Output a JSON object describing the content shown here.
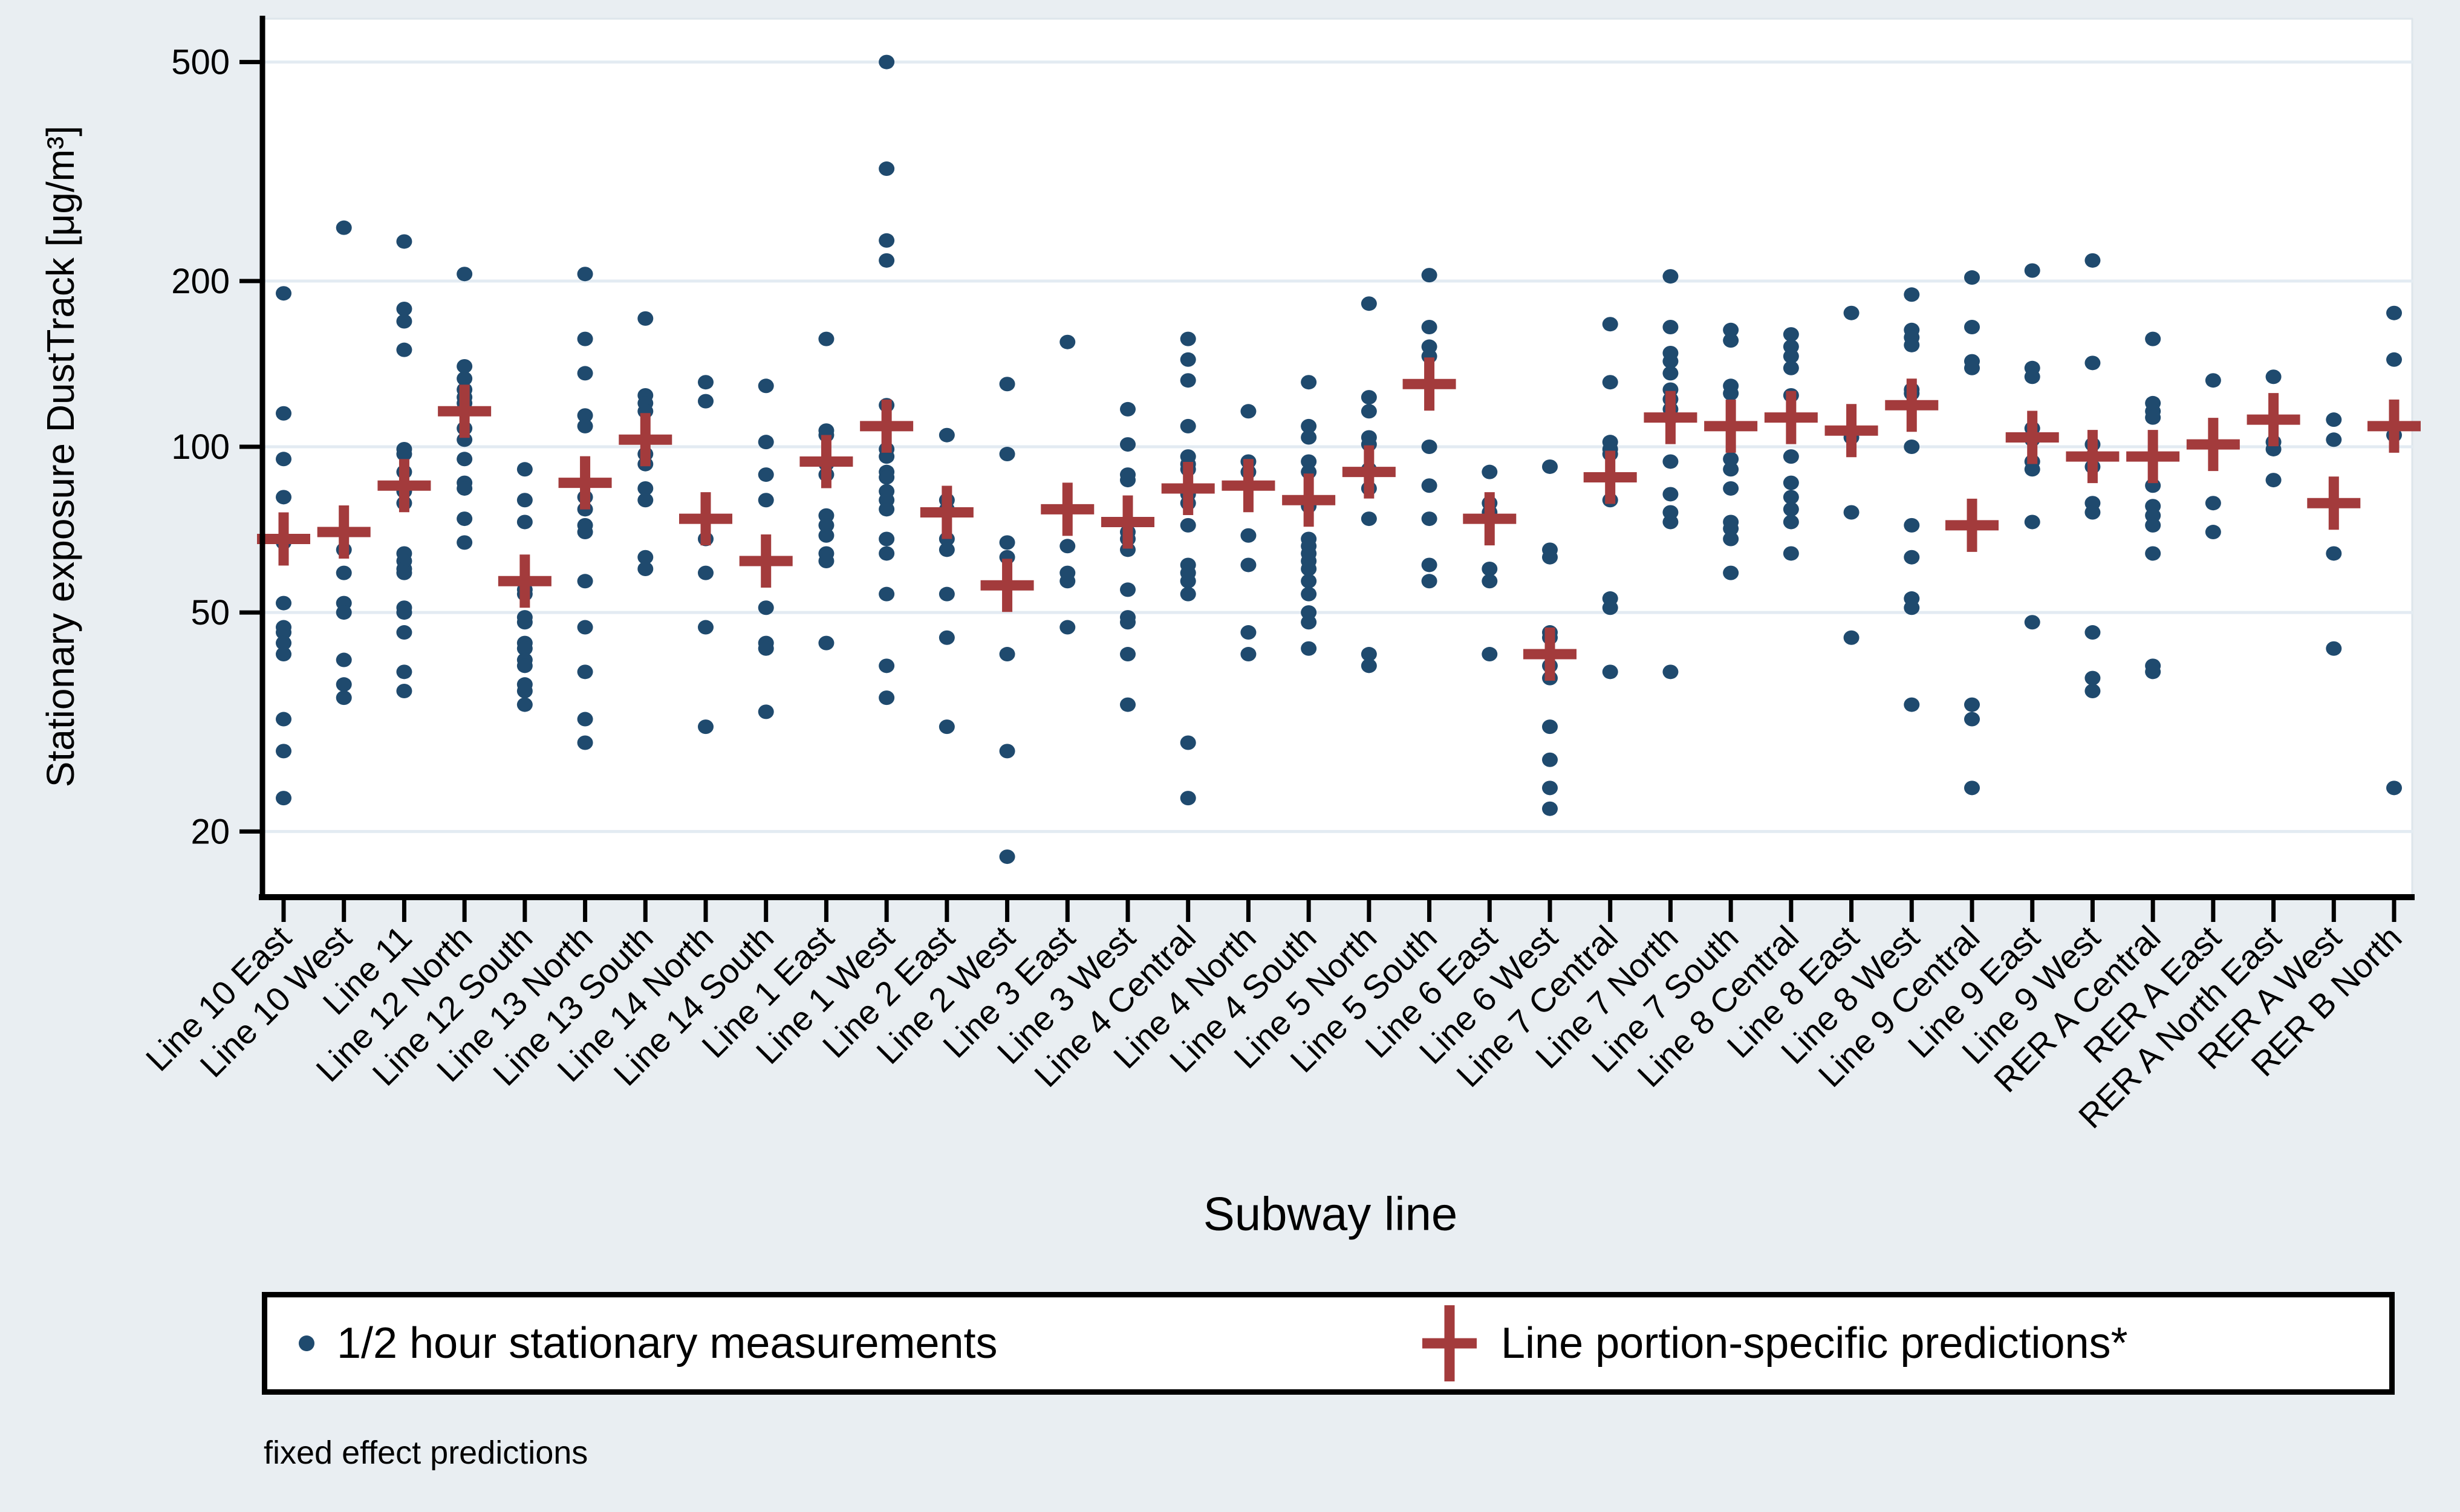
{
  "figure": {
    "footnote": "fixed effect predictions",
    "colors": {
      "dot": "#1f4a6e",
      "plus": "#a33b3c",
      "grid": "#e3ebf2",
      "figure_bg": "#e9eef2",
      "plot_bg": "#ffffff",
      "axis": "#000000",
      "plot_edge": "#dde5eb"
    }
  },
  "chart_data": {
    "type": "scatter",
    "title": "",
    "xlabel": "Subway line",
    "ylabel": "Stationary exposure DustTrack [μg/m³]",
    "y_scale": "log",
    "y_ticks": [
      20,
      50,
      100,
      200,
      500
    ],
    "ylim": [
      15,
      600
    ],
    "grid": "horizontal gridlines at y ticks",
    "legend_position": "bottom",
    "series": [
      {
        "name": "1/2 hour stationary measurements",
        "marker": "dot",
        "color": "#1f4a6e"
      },
      {
        "name": "Line portion-specific predictions*",
        "marker": "plus",
        "color": "#a33b3c"
      }
    ],
    "categories": [
      "Line 10 East",
      "Line 10 West",
      "Line 11",
      "Line 12 North",
      "Line 12 South",
      "Line 13 North",
      "Line 13 South",
      "Line 14 North",
      "Line 14 South",
      "Line 1 East",
      "Line 1 West",
      "Line 2 East",
      "Line 2 West",
      "Line 3 East",
      "Line 3 West",
      "Line 4 Central",
      "Line 4 North",
      "Line 4 South",
      "Line 5 North",
      "Line 5 South",
      "Line 6 East",
      "Line 6 West",
      "Line 7 Central",
      "Line 7 North",
      "Line 7 South",
      "Line 8 Central",
      "Line 8 East",
      "Line 8 West",
      "Line 9 Central",
      "Line 9 East",
      "Line 9 West",
      "RER A Central",
      "RER A East",
      "RER A North East",
      "RER A West",
      "RER B North"
    ],
    "measurements": [
      [
        190,
        115,
        95,
        81,
        67,
        52,
        47,
        46,
        44,
        42,
        32,
        28,
        23
      ],
      [
        250,
        65,
        59,
        52,
        50,
        41,
        37,
        35
      ],
      [
        236,
        178,
        169,
        150,
        99,
        97,
        90,
        83,
        79,
        64,
        62,
        60,
        59,
        51,
        50,
        46,
        39,
        36
      ],
      [
        206,
        140,
        133,
        127,
        123,
        120,
        108,
        103,
        95,
        86,
        84,
        74,
        67
      ],
      [
        91,
        80,
        73,
        55,
        54,
        49,
        48,
        44,
        43,
        41,
        40,
        37,
        36,
        34
      ],
      [
        206,
        157,
        136,
        114,
        109,
        81,
        77,
        72,
        70,
        57,
        47,
        39,
        32,
        29
      ],
      [
        171,
        124,
        120,
        116,
        97,
        93,
        84,
        80,
        63,
        60
      ],
      [
        131,
        121,
        68,
        59,
        47,
        31
      ],
      [
        129,
        102,
        89,
        80,
        51,
        44,
        43,
        33
      ],
      [
        157,
        107,
        105,
        93,
        89,
        75,
        72,
        69,
        64,
        62,
        44
      ],
      [
        500,
        320,
        237,
        218,
        119,
        99,
        96,
        90,
        88,
        83,
        80,
        77,
        68,
        64,
        54,
        40,
        35
      ],
      [
        105,
        80,
        77,
        68,
        65,
        54,
        45,
        31
      ],
      [
        130,
        97,
        67,
        63,
        42,
        28,
        18
      ],
      [
        155,
        66,
        59,
        57,
        47
      ],
      [
        117,
        101,
        89,
        87,
        70,
        68,
        65,
        55,
        49,
        48,
        42,
        34
      ],
      [
        157,
        144,
        132,
        109,
        96,
        93,
        91,
        82,
        79,
        72,
        61,
        59,
        57,
        54,
        29,
        23
      ],
      [
        116,
        94,
        90,
        69,
        61,
        46,
        42
      ],
      [
        131,
        109,
        104,
        94,
        90,
        79,
        78,
        68,
        66,
        64,
        62,
        60,
        57,
        54,
        50,
        48,
        43
      ],
      [
        182,
        123,
        116,
        104,
        101,
        91,
        84,
        74,
        42,
        40
      ],
      [
        205,
        165,
        152,
        146,
        100,
        85,
        74,
        61,
        57
      ],
      [
        90,
        79,
        76,
        60,
        57,
        42
      ],
      [
        92,
        65,
        63,
        46,
        45,
        40,
        38,
        31,
        27,
        24,
        22
      ],
      [
        167,
        131,
        102,
        99,
        97,
        80,
        53,
        51,
        39
      ],
      [
        204,
        165,
        148,
        143,
        136,
        127,
        122,
        117,
        113,
        94,
        82,
        76,
        73,
        39
      ],
      [
        163,
        156,
        129,
        125,
        95,
        91,
        84,
        73,
        71,
        68,
        59
      ],
      [
        160,
        152,
        146,
        139,
        124,
        96,
        86,
        81,
        77,
        73,
        64
      ],
      [
        175,
        104,
        76,
        45
      ],
      [
        189,
        163,
        158,
        153,
        127,
        125,
        100,
        72,
        63,
        53,
        51,
        34
      ],
      [
        203,
        165,
        143,
        139,
        34,
        32,
        24
      ],
      [
        209,
        139,
        134,
        108,
        103,
        94,
        91,
        73,
        48
      ],
      [
        218,
        142,
        101,
        96,
        92,
        79,
        76,
        46,
        38,
        36
      ],
      [
        157,
        120,
        116,
        113,
        85,
        78,
        75,
        72,
        64,
        40,
        39
      ],
      [
        132,
        79,
        70
      ],
      [
        134,
        102,
        99,
        87
      ],
      [
        112,
        103,
        64,
        43
      ],
      [
        175,
        144,
        105,
        24
      ]
    ],
    "predictions": [
      68,
      70,
      85,
      116,
      57,
      86,
      103,
      74,
      62,
      94,
      109,
      76,
      56,
      77,
      73,
      84,
      85,
      80,
      90,
      130,
      74,
      42,
      88,
      113,
      109,
      113,
      107,
      119,
      72,
      104,
      96,
      96,
      101,
      112,
      79,
      109
    ]
  }
}
